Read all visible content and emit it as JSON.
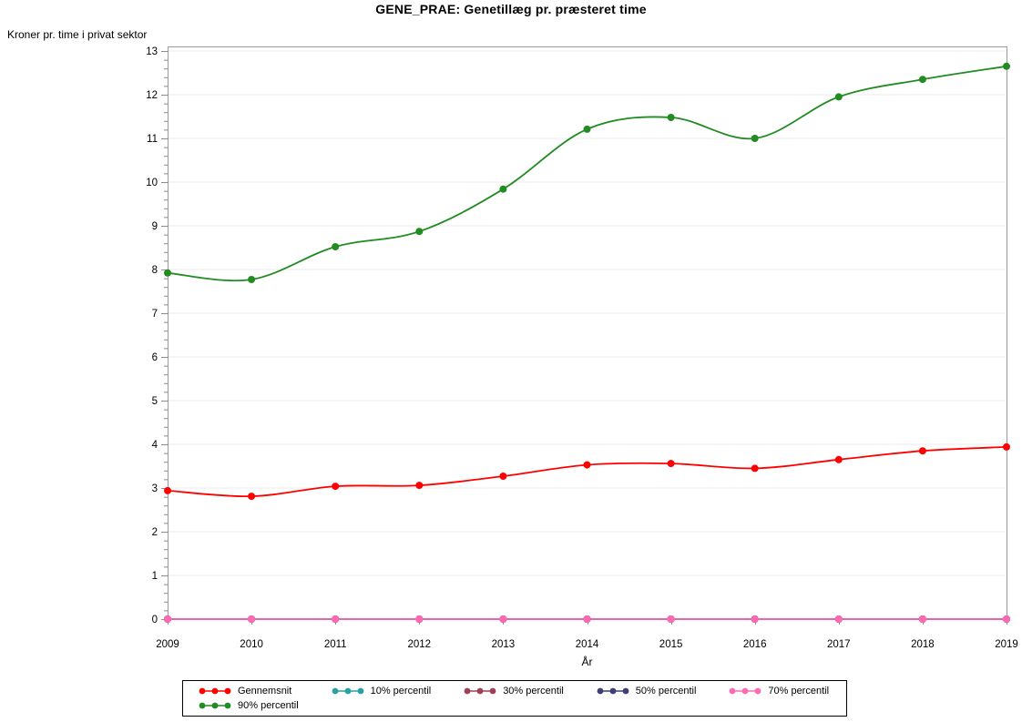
{
  "chart_data": {
    "type": "line",
    "title": "GENE_PRAE: Genetillæg pr. præsteret time",
    "xlabel": "År",
    "ylabel": "Kroner pr. time i privat sektor",
    "x": [
      2009,
      2010,
      2011,
      2012,
      2013,
      2014,
      2015,
      2016,
      2017,
      2018,
      2019
    ],
    "ylim": [
      0,
      13
    ],
    "y_major_ticks": [
      0,
      1,
      2,
      3,
      4,
      5,
      6,
      7,
      8,
      9,
      10,
      11,
      12,
      13
    ],
    "y_minor_tick_step": 0.2,
    "grid": "horizontal major gridlines on",
    "legend_position": "bottom boxed, rows of five",
    "series": [
      {
        "name": "Gennemsnit",
        "color": "#ff0000",
        "values": [
          2.94,
          2.81,
          3.04,
          3.06,
          3.27,
          3.53,
          3.56,
          3.45,
          3.65,
          3.85,
          3.94
        ]
      },
      {
        "name": "10% percentil",
        "color": "#2aa0a0",
        "values": [
          0,
          0,
          0,
          0,
          0,
          0,
          0,
          0,
          0,
          0,
          0
        ]
      },
      {
        "name": "30% percentil",
        "color": "#a03e56",
        "values": [
          0,
          0,
          0,
          0,
          0,
          0,
          0,
          0,
          0,
          0,
          0
        ]
      },
      {
        "name": "50% percentil",
        "color": "#3e3e72",
        "values": [
          0,
          0,
          0,
          0,
          0,
          0,
          0,
          0,
          0,
          0,
          0
        ]
      },
      {
        "name": "70% percentil",
        "color": "#ff69b4",
        "values": [
          0,
          0,
          0,
          0,
          0,
          0,
          0,
          0,
          0,
          0,
          0
        ]
      },
      {
        "name": "90% percentil",
        "color": "#228b22",
        "values": [
          7.92,
          7.77,
          8.52,
          8.87,
          9.84,
          11.21,
          11.48,
          11.0,
          11.95,
          12.35,
          12.65
        ]
      }
    ],
    "colors": {
      "axis": "#9b9b9b",
      "gridline": "#ebebeb",
      "tick": "#8c8c8c",
      "text": "#000000",
      "background": "#ffffff"
    }
  }
}
